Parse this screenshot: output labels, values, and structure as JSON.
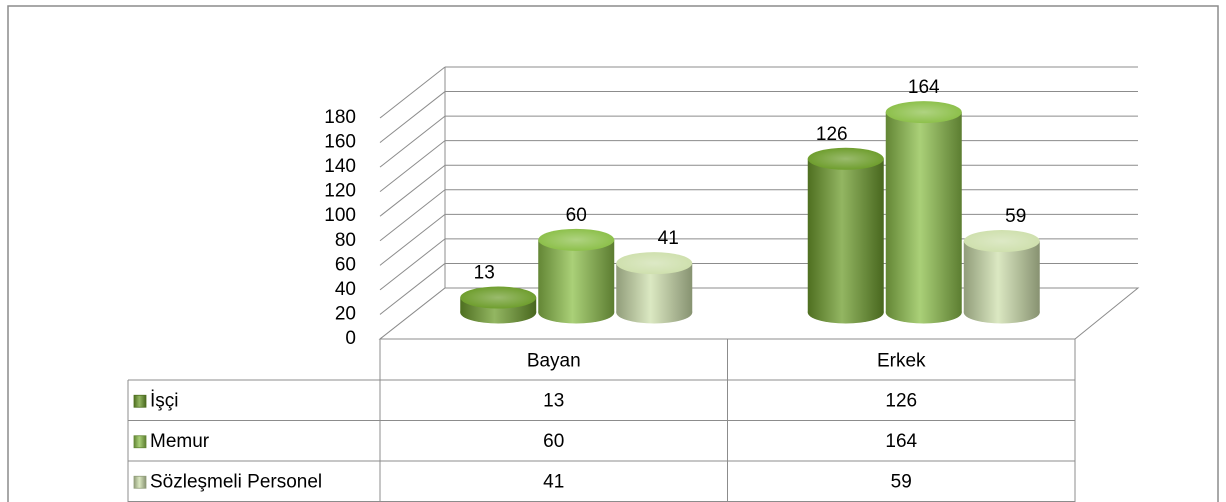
{
  "chart_data": {
    "type": "bar3d",
    "categories": [
      "Bayan",
      "Erkek"
    ],
    "series": [
      {
        "name": "İşçi",
        "color": "#6f9e2e",
        "values": [
          13,
          126
        ]
      },
      {
        "name": "Memur",
        "color": "#8dc04b",
        "values": [
          60,
          164
        ]
      },
      {
        "name": "Sözleşmeli Personel",
        "color": "#cfe0ae",
        "values": [
          41,
          59
        ]
      }
    ],
    "ylim": [
      0,
      180
    ],
    "yticks": [
      0,
      20,
      40,
      60,
      80,
      100,
      120,
      140,
      160,
      180
    ],
    "grid": true
  }
}
